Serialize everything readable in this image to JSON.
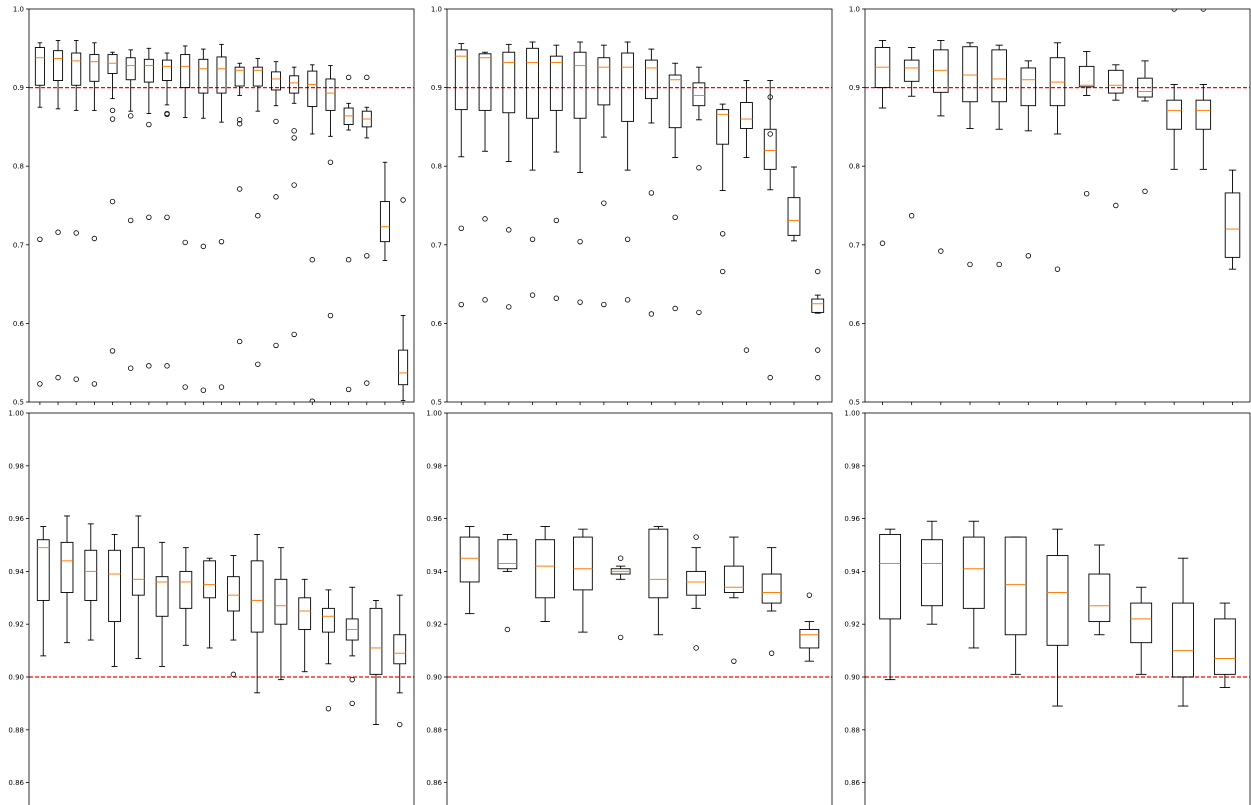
{
  "colors": {
    "median": "#ff7f0e",
    "reference": "#ff0000",
    "box": "#000000"
  },
  "chart_data": [
    {
      "type": "box",
      "ylim": [
        0.5,
        1.0
      ],
      "yticks": [
        "0.5",
        "0.6",
        "0.7",
        "0.8",
        "0.9",
        "1.0"
      ],
      "reference_line": 0.9,
      "boxes": [
        {
          "whislo": 0.875,
          "q1": 0.903,
          "med": 0.938,
          "q3": 0.951,
          "whishi": 0.957,
          "fliers": [
            0.707,
            0.523
          ]
        },
        {
          "whislo": 0.873,
          "q1": 0.909,
          "med": 0.937,
          "q3": 0.947,
          "whishi": 0.96,
          "fliers": [
            0.716,
            0.531
          ]
        },
        {
          "whislo": 0.871,
          "q1": 0.903,
          "med": 0.934,
          "q3": 0.944,
          "whishi": 0.96,
          "fliers": [
            0.715,
            0.529
          ]
        },
        {
          "whislo": 0.871,
          "q1": 0.908,
          "med": 0.933,
          "q3": 0.942,
          "whishi": 0.957,
          "fliers": [
            0.708,
            0.523
          ]
        },
        {
          "whislo": 0.886,
          "q1": 0.918,
          "med": 0.931,
          "q3": 0.942,
          "whishi": 0.945,
          "fliers": [
            0.871,
            0.86,
            0.755,
            0.565
          ]
        },
        {
          "whislo": 0.87,
          "q1": 0.91,
          "med": 0.928,
          "q3": 0.938,
          "whishi": 0.948,
          "fliers": [
            0.864,
            0.731,
            0.543
          ]
        },
        {
          "whislo": 0.867,
          "q1": 0.907,
          "med": 0.928,
          "q3": 0.936,
          "whishi": 0.95,
          "fliers": [
            0.853,
            0.735,
            0.546
          ]
        },
        {
          "whislo": 0.878,
          "q1": 0.909,
          "med": 0.927,
          "q3": 0.935,
          "whishi": 0.944,
          "fliers": [
            0.867,
            0.866,
            0.735,
            0.546
          ]
        },
        {
          "whislo": 0.862,
          "q1": 0.9,
          "med": 0.927,
          "q3": 0.942,
          "whishi": 0.953,
          "fliers": [
            0.703,
            0.519
          ]
        },
        {
          "whislo": 0.861,
          "q1": 0.893,
          "med": 0.924,
          "q3": 0.936,
          "whishi": 0.949,
          "fliers": [
            0.698,
            0.515
          ]
        },
        {
          "whislo": 0.856,
          "q1": 0.893,
          "med": 0.924,
          "q3": 0.939,
          "whishi": 0.955,
          "fliers": [
            0.704,
            0.519
          ]
        },
        {
          "whislo": 0.89,
          "q1": 0.902,
          "med": 0.922,
          "q3": 0.926,
          "whishi": 0.931,
          "fliers": [
            0.859,
            0.854,
            0.771,
            0.577
          ]
        },
        {
          "whislo": 0.87,
          "q1": 0.902,
          "med": 0.922,
          "q3": 0.926,
          "whishi": 0.937,
          "fliers": [
            0.737,
            0.548
          ]
        },
        {
          "whislo": 0.877,
          "q1": 0.897,
          "med": 0.911,
          "q3": 0.92,
          "whishi": 0.933,
          "fliers": [
            0.857,
            0.761,
            0.572
          ]
        },
        {
          "whislo": 0.88,
          "q1": 0.893,
          "med": 0.906,
          "q3": 0.915,
          "whishi": 0.926,
          "fliers": [
            0.845,
            0.836,
            0.776,
            0.586
          ]
        },
        {
          "whislo": 0.841,
          "q1": 0.876,
          "med": 0.904,
          "q3": 0.921,
          "whishi": 0.929,
          "fliers": [
            0.681,
            0.501
          ]
        },
        {
          "whislo": 0.838,
          "q1": 0.871,
          "med": 0.893,
          "q3": 0.911,
          "whishi": 0.928,
          "fliers": [
            0.805,
            0.61
          ]
        },
        {
          "whislo": 0.846,
          "q1": 0.853,
          "med": 0.864,
          "q3": 0.874,
          "whishi": 0.88,
          "fliers": [
            0.913,
            0.681,
            0.516
          ]
        },
        {
          "whislo": 0.836,
          "q1": 0.85,
          "med": 0.86,
          "q3": 0.87,
          "whishi": 0.875,
          "fliers": [
            0.913,
            0.686,
            0.524
          ]
        },
        {
          "whislo": 0.68,
          "q1": 0.704,
          "med": 0.723,
          "q3": 0.755,
          "whishi": 0.805,
          "fliers": []
        },
        {
          "whislo": 0.502,
          "q1": 0.522,
          "med": 0.537,
          "q3": 0.566,
          "whishi": 0.61,
          "fliers": [
            0.757
          ]
        }
      ]
    },
    {
      "type": "box",
      "ylim": [
        0.5,
        1.0
      ],
      "yticks": [
        "0.5",
        "0.6",
        "0.7",
        "0.8",
        "0.9",
        "1.0"
      ],
      "reference_line": 0.9,
      "boxes": [
        {
          "whislo": 0.812,
          "q1": 0.872,
          "med": 0.94,
          "q3": 0.948,
          "whishi": 0.956,
          "fliers": [
            0.721,
            0.624
          ]
        },
        {
          "whislo": 0.819,
          "q1": 0.871,
          "med": 0.938,
          "q3": 0.943,
          "whishi": 0.945,
          "fliers": [
            0.733,
            0.63
          ]
        },
        {
          "whislo": 0.806,
          "q1": 0.868,
          "med": 0.932,
          "q3": 0.945,
          "whishi": 0.955,
          "fliers": [
            0.719,
            0.621
          ]
        },
        {
          "whislo": 0.795,
          "q1": 0.861,
          "med": 0.932,
          "q3": 0.95,
          "whishi": 0.958,
          "fliers": [
            0.707,
            0.636
          ]
        },
        {
          "whislo": 0.818,
          "q1": 0.871,
          "med": 0.932,
          "q3": 0.94,
          "whishi": 0.954,
          "fliers": [
            0.731,
            0.632
          ]
        },
        {
          "whislo": 0.792,
          "q1": 0.861,
          "med": 0.928,
          "q3": 0.945,
          "whishi": 0.958,
          "fliers": [
            0.704,
            0.627
          ]
        },
        {
          "whislo": 0.837,
          "q1": 0.878,
          "med": 0.926,
          "q3": 0.938,
          "whishi": 0.954,
          "fliers": [
            0.753,
            0.624
          ]
        },
        {
          "whislo": 0.795,
          "q1": 0.857,
          "med": 0.926,
          "q3": 0.944,
          "whishi": 0.958,
          "fliers": [
            0.707,
            0.63
          ]
        },
        {
          "whislo": 0.855,
          "q1": 0.886,
          "med": 0.925,
          "q3": 0.935,
          "whishi": 0.949,
          "fliers": [
            0.766,
            0.612
          ]
        },
        {
          "whislo": 0.811,
          "q1": 0.849,
          "med": 0.91,
          "q3": 0.916,
          "whishi": 0.931,
          "fliers": [
            0.735,
            0.619
          ]
        },
        {
          "whislo": 0.859,
          "q1": 0.877,
          "med": 0.89,
          "q3": 0.906,
          "whishi": 0.926,
          "fliers": [
            0.798,
            0.614
          ]
        },
        {
          "whislo": 0.769,
          "q1": 0.828,
          "med": 0.866,
          "q3": 0.872,
          "whishi": 0.879,
          "fliers": [
            0.714,
            0.666
          ]
        },
        {
          "whislo": 0.811,
          "q1": 0.848,
          "med": 0.86,
          "q3": 0.881,
          "whishi": 0.909,
          "fliers": [
            0.566
          ]
        },
        {
          "whislo": 0.77,
          "q1": 0.796,
          "med": 0.82,
          "q3": 0.847,
          "whishi": 0.909,
          "fliers": [
            0.888,
            0.841,
            0.531
          ]
        },
        {
          "whislo": 0.705,
          "q1": 0.712,
          "med": 0.731,
          "q3": 0.76,
          "whishi": 0.799,
          "fliers": []
        },
        {
          "whislo": 0.613,
          "q1": 0.614,
          "med": 0.625,
          "q3": 0.631,
          "whishi": 0.636,
          "fliers": [
            0.666,
            0.566,
            0.531
          ]
        }
      ]
    },
    {
      "type": "box",
      "ylim": [
        0.5,
        1.0
      ],
      "yticks": [
        "0.5",
        "0.6",
        "0.7",
        "0.8",
        "0.9",
        "1.0"
      ],
      "reference_line": 0.9,
      "boxes": [
        {
          "whislo": 0.874,
          "q1": 0.9,
          "med": 0.926,
          "q3": 0.951,
          "whishi": 0.96,
          "fliers": [
            0.702
          ]
        },
        {
          "whislo": 0.889,
          "q1": 0.908,
          "med": 0.925,
          "q3": 0.935,
          "whishi": 0.951,
          "fliers": [
            0.737
          ]
        },
        {
          "whislo": 0.864,
          "q1": 0.894,
          "med": 0.922,
          "q3": 0.948,
          "whishi": 0.96,
          "fliers": [
            0.692
          ]
        },
        {
          "whislo": 0.848,
          "q1": 0.882,
          "med": 0.916,
          "q3": 0.952,
          "whishi": 0.957,
          "fliers": [
            0.675
          ]
        },
        {
          "whislo": 0.847,
          "q1": 0.882,
          "med": 0.911,
          "q3": 0.948,
          "whishi": 0.954,
          "fliers": [
            0.675
          ]
        },
        {
          "whislo": 0.845,
          "q1": 0.877,
          "med": 0.91,
          "q3": 0.925,
          "whishi": 0.934,
          "fliers": [
            0.686
          ]
        },
        {
          "whislo": 0.841,
          "q1": 0.877,
          "med": 0.907,
          "q3": 0.938,
          "whishi": 0.957,
          "fliers": [
            0.669
          ]
        },
        {
          "whislo": 0.89,
          "q1": 0.901,
          "med": 0.903,
          "q3": 0.927,
          "whishi": 0.946,
          "fliers": [
            0.765
          ]
        },
        {
          "whislo": 0.884,
          "q1": 0.893,
          "med": 0.903,
          "q3": 0.922,
          "whishi": 0.929,
          "fliers": [
            0.75
          ]
        },
        {
          "whislo": 0.883,
          "q1": 0.888,
          "med": 0.895,
          "q3": 0.912,
          "whishi": 0.934,
          "fliers": [
            0.768
          ]
        },
        {
          "whislo": 0.796,
          "q1": 0.847,
          "med": 0.871,
          "q3": 0.884,
          "whishi": 0.904,
          "fliers": [
            1.0
          ]
        },
        {
          "whislo": 0.796,
          "q1": 0.847,
          "med": 0.871,
          "q3": 0.884,
          "whishi": 0.904,
          "fliers": [
            1.0
          ]
        },
        {
          "whislo": 0.669,
          "q1": 0.684,
          "med": 0.72,
          "q3": 0.766,
          "whishi": 0.795,
          "fliers": []
        }
      ]
    },
    {
      "type": "box",
      "ylim": [
        0.85,
        1.0
      ],
      "yticks": [
        "0.86",
        "0.88",
        "0.90",
        "0.92",
        "0.94",
        "0.96",
        "0.98",
        "1.00"
      ],
      "reference_line": 0.9,
      "boxes": [
        {
          "whislo": 0.908,
          "q1": 0.929,
          "med": 0.949,
          "q3": 0.952,
          "whishi": 0.957,
          "fliers": []
        },
        {
          "whislo": 0.913,
          "q1": 0.932,
          "med": 0.944,
          "q3": 0.951,
          "whishi": 0.961,
          "fliers": []
        },
        {
          "whislo": 0.914,
          "q1": 0.929,
          "med": 0.94,
          "q3": 0.948,
          "whishi": 0.958,
          "fliers": []
        },
        {
          "whislo": 0.904,
          "q1": 0.921,
          "med": 0.939,
          "q3": 0.948,
          "whishi": 0.954,
          "fliers": []
        },
        {
          "whislo": 0.907,
          "q1": 0.931,
          "med": 0.937,
          "q3": 0.949,
          "whishi": 0.961,
          "fliers": []
        },
        {
          "whislo": 0.904,
          "q1": 0.923,
          "med": 0.936,
          "q3": 0.938,
          "whishi": 0.951,
          "fliers": []
        },
        {
          "whislo": 0.912,
          "q1": 0.926,
          "med": 0.936,
          "q3": 0.94,
          "whishi": 0.949,
          "fliers": []
        },
        {
          "whislo": 0.911,
          "q1": 0.93,
          "med": 0.935,
          "q3": 0.944,
          "whishi": 0.945,
          "fliers": []
        },
        {
          "whislo": 0.914,
          "q1": 0.925,
          "med": 0.931,
          "q3": 0.938,
          "whishi": 0.946,
          "fliers": [
            0.901
          ]
        },
        {
          "whislo": 0.894,
          "q1": 0.917,
          "med": 0.929,
          "q3": 0.944,
          "whishi": 0.954,
          "fliers": []
        },
        {
          "whislo": 0.899,
          "q1": 0.92,
          "med": 0.927,
          "q3": 0.937,
          "whishi": 0.949,
          "fliers": []
        },
        {
          "whislo": 0.902,
          "q1": 0.918,
          "med": 0.925,
          "q3": 0.93,
          "whishi": 0.937,
          "fliers": []
        },
        {
          "whislo": 0.905,
          "q1": 0.917,
          "med": 0.923,
          "q3": 0.926,
          "whishi": 0.933,
          "fliers": [
            0.888
          ]
        },
        {
          "whislo": 0.908,
          "q1": 0.914,
          "med": 0.918,
          "q3": 0.922,
          "whishi": 0.934,
          "fliers": [
            0.899,
            0.89
          ]
        },
        {
          "whislo": 0.882,
          "q1": 0.901,
          "med": 0.911,
          "q3": 0.926,
          "whishi": 0.929,
          "fliers": []
        },
        {
          "whislo": 0.894,
          "q1": 0.905,
          "med": 0.909,
          "q3": 0.916,
          "whishi": 0.931,
          "fliers": [
            0.882
          ]
        }
      ]
    },
    {
      "type": "box",
      "ylim": [
        0.85,
        1.0
      ],
      "yticks": [
        "0.86",
        "0.88",
        "0.90",
        "0.92",
        "0.94",
        "0.96",
        "0.98",
        "1.00"
      ],
      "reference_line": 0.9,
      "boxes": [
        {
          "whislo": 0.924,
          "q1": 0.936,
          "med": 0.945,
          "q3": 0.953,
          "whishi": 0.957,
          "fliers": []
        },
        {
          "whislo": 0.94,
          "q1": 0.941,
          "med": 0.943,
          "q3": 0.952,
          "whishi": 0.954,
          "fliers": [
            0.918
          ]
        },
        {
          "whislo": 0.921,
          "q1": 0.93,
          "med": 0.942,
          "q3": 0.952,
          "whishi": 0.957,
          "fliers": []
        },
        {
          "whislo": 0.917,
          "q1": 0.933,
          "med": 0.941,
          "q3": 0.953,
          "whishi": 0.956,
          "fliers": []
        },
        {
          "whislo": 0.937,
          "q1": 0.939,
          "med": 0.94,
          "q3": 0.941,
          "whishi": 0.942,
          "fliers": [
            0.945,
            0.915
          ]
        },
        {
          "whislo": 0.916,
          "q1": 0.93,
          "med": 0.937,
          "q3": 0.956,
          "whishi": 0.957,
          "fliers": []
        },
        {
          "whislo": 0.926,
          "q1": 0.931,
          "med": 0.936,
          "q3": 0.94,
          "whishi": 0.949,
          "fliers": [
            0.953,
            0.911
          ]
        },
        {
          "whislo": 0.93,
          "q1": 0.932,
          "med": 0.934,
          "q3": 0.942,
          "whishi": 0.953,
          "fliers": [
            0.906
          ]
        },
        {
          "whislo": 0.925,
          "q1": 0.928,
          "med": 0.932,
          "q3": 0.939,
          "whishi": 0.949,
          "fliers": [
            0.909
          ]
        },
        {
          "whislo": 0.906,
          "q1": 0.911,
          "med": 0.916,
          "q3": 0.918,
          "whishi": 0.921,
          "fliers": [
            0.931
          ]
        }
      ]
    },
    {
      "type": "box",
      "ylim": [
        0.85,
        1.0
      ],
      "yticks": [
        "0.86",
        "0.88",
        "0.90",
        "0.92",
        "0.94",
        "0.96",
        "0.98",
        "1.00"
      ],
      "reference_line": 0.9,
      "boxes": [
        {
          "whislo": 0.899,
          "q1": 0.922,
          "med": 0.943,
          "q3": 0.954,
          "whishi": 0.956,
          "fliers": []
        },
        {
          "whislo": 0.92,
          "q1": 0.927,
          "med": 0.943,
          "q3": 0.952,
          "whishi": 0.959,
          "fliers": []
        },
        {
          "whislo": 0.911,
          "q1": 0.926,
          "med": 0.941,
          "q3": 0.953,
          "whishi": 0.959,
          "fliers": []
        },
        {
          "whislo": 0.901,
          "q1": 0.916,
          "med": 0.935,
          "q3": 0.953,
          "whishi": 0.953,
          "fliers": []
        },
        {
          "whislo": 0.889,
          "q1": 0.912,
          "med": 0.932,
          "q3": 0.946,
          "whishi": 0.956,
          "fliers": []
        },
        {
          "whislo": 0.916,
          "q1": 0.921,
          "med": 0.927,
          "q3": 0.939,
          "whishi": 0.95,
          "fliers": []
        },
        {
          "whislo": 0.901,
          "q1": 0.913,
          "med": 0.922,
          "q3": 0.928,
          "whishi": 0.934,
          "fliers": []
        },
        {
          "whislo": 0.889,
          "q1": 0.9,
          "med": 0.91,
          "q3": 0.928,
          "whishi": 0.945,
          "fliers": []
        },
        {
          "whislo": 0.896,
          "q1": 0.901,
          "med": 0.907,
          "q3": 0.922,
          "whishi": 0.928,
          "fliers": []
        }
      ]
    }
  ]
}
